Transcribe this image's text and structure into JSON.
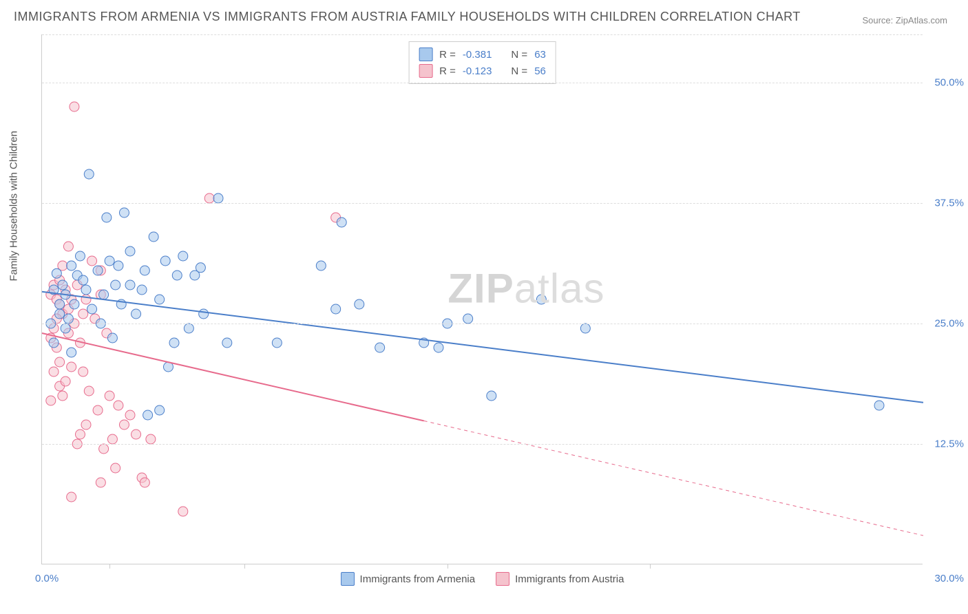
{
  "title": "IMMIGRANTS FROM ARMENIA VS IMMIGRANTS FROM AUSTRIA FAMILY HOUSEHOLDS WITH CHILDREN CORRELATION CHART",
  "source": "Source: ZipAtlas.com",
  "y_axis_label": "Family Households with Children",
  "watermark": {
    "bold": "ZIP",
    "rest": "atlas"
  },
  "chart": {
    "type": "scatter",
    "background_color": "#ffffff",
    "grid_color": "#dddddd",
    "axis_color": "#cccccc",
    "xlim": [
      0,
      30
    ],
    "ylim": [
      0,
      55
    ],
    "x_ticks": [
      0,
      30
    ],
    "x_tick_labels": [
      "0.0%",
      "30.0%"
    ],
    "x_minor_ticks": [
      2.3,
      6.9,
      13.8,
      20.7
    ],
    "y_gridlines": [
      12.5,
      25.0,
      37.5,
      50.0,
      55.0
    ],
    "y_tick_labels": [
      "12.5%",
      "25.0%",
      "37.5%",
      "50.0%"
    ],
    "marker_radius": 7,
    "marker_opacity": 0.55,
    "line_width": 2,
    "label_fontsize": 15,
    "tick_color": "#4a7ec9"
  },
  "series": [
    {
      "name": "Immigrants from Armenia",
      "color_fill": "#a8c9ed",
      "color_stroke": "#4a7ec9",
      "R": "-0.381",
      "N": "63",
      "trend": {
        "x1": 0,
        "y1": 28.3,
        "x2": 30,
        "y2": 16.8,
        "dash_after_x": 999
      },
      "points": [
        [
          0.4,
          28.5
        ],
        [
          0.5,
          30.2
        ],
        [
          0.6,
          27.0
        ],
        [
          0.7,
          29.0
        ],
        [
          0.8,
          28.0
        ],
        [
          0.6,
          26.0
        ],
        [
          1.0,
          31.0
        ],
        [
          1.2,
          30.0
        ],
        [
          1.4,
          29.5
        ],
        [
          1.1,
          27.0
        ],
        [
          0.9,
          25.5
        ],
        [
          1.5,
          28.5
        ],
        [
          1.6,
          40.5
        ],
        [
          2.2,
          36.0
        ],
        [
          2.8,
          36.5
        ],
        [
          1.3,
          32.0
        ],
        [
          2.0,
          25.0
        ],
        [
          2.5,
          29.0
        ],
        [
          2.3,
          31.5
        ],
        [
          2.7,
          27.0
        ],
        [
          3.0,
          32.5
        ],
        [
          3.5,
          30.5
        ],
        [
          3.2,
          26.0
        ],
        [
          2.4,
          23.5
        ],
        [
          3.8,
          34.0
        ],
        [
          4.2,
          31.5
        ],
        [
          4.6,
          30.0
        ],
        [
          4.0,
          27.5
        ],
        [
          4.8,
          32.0
        ],
        [
          5.2,
          30.0
        ],
        [
          4.5,
          23.0
        ],
        [
          5.0,
          24.5
        ],
        [
          5.5,
          26.0
        ],
        [
          6.0,
          38.0
        ],
        [
          4.3,
          20.5
        ],
        [
          3.6,
          15.5
        ],
        [
          4.0,
          16.0
        ],
        [
          6.3,
          23.0
        ],
        [
          9.5,
          31.0
        ],
        [
          10.2,
          35.5
        ],
        [
          8.0,
          23.0
        ],
        [
          10.0,
          26.5
        ],
        [
          10.8,
          27.0
        ],
        [
          11.5,
          22.5
        ],
        [
          13.0,
          23.0
        ],
        [
          13.5,
          22.5
        ],
        [
          13.8,
          25.0
        ],
        [
          14.5,
          25.5
        ],
        [
          15.3,
          17.5
        ],
        [
          17.0,
          27.5
        ],
        [
          18.5,
          24.5
        ],
        [
          28.5,
          16.5
        ],
        [
          0.3,
          25.0
        ],
        [
          0.4,
          23.0
        ],
        [
          0.8,
          24.5
        ],
        [
          1.0,
          22.0
        ],
        [
          1.9,
          30.5
        ],
        [
          2.1,
          28.0
        ],
        [
          3.4,
          28.5
        ],
        [
          1.7,
          26.5
        ],
        [
          2.6,
          31.0
        ],
        [
          5.4,
          30.8
        ],
        [
          3.0,
          29.0
        ]
      ]
    },
    {
      "name": "Immigrants from Austria",
      "color_fill": "#f5c3cd",
      "color_stroke": "#e76a8c",
      "R": "-0.123",
      "N": "56",
      "trend": {
        "x1": 0,
        "y1": 24.0,
        "x2": 30,
        "y2": 3.0,
        "dash_after_x": 13
      },
      "points": [
        [
          0.3,
          28.0
        ],
        [
          0.4,
          29.0
        ],
        [
          0.5,
          27.5
        ],
        [
          0.6,
          29.5
        ],
        [
          0.6,
          27.0
        ],
        [
          0.7,
          26.0
        ],
        [
          0.4,
          24.5
        ],
        [
          0.8,
          28.5
        ],
        [
          0.9,
          26.5
        ],
        [
          1.0,
          27.5
        ],
        [
          0.5,
          22.5
        ],
        [
          0.6,
          21.0
        ],
        [
          0.3,
          23.5
        ],
        [
          0.4,
          20.0
        ],
        [
          0.9,
          33.0
        ],
        [
          0.7,
          31.0
        ],
        [
          1.2,
          29.0
        ],
        [
          1.1,
          25.0
        ],
        [
          1.3,
          23.0
        ],
        [
          0.6,
          18.5
        ],
        [
          0.7,
          17.5
        ],
        [
          0.3,
          17.0
        ],
        [
          1.0,
          20.5
        ],
        [
          0.8,
          19.0
        ],
        [
          1.7,
          31.5
        ],
        [
          1.5,
          27.5
        ],
        [
          1.8,
          25.5
        ],
        [
          2.0,
          30.5
        ],
        [
          2.0,
          28.0
        ],
        [
          2.2,
          24.0
        ],
        [
          1.6,
          18.0
        ],
        [
          1.4,
          20.0
        ],
        [
          1.1,
          47.5
        ],
        [
          1.9,
          16.0
        ],
        [
          2.3,
          17.5
        ],
        [
          2.6,
          16.5
        ],
        [
          2.4,
          13.0
        ],
        [
          2.8,
          14.5
        ],
        [
          2.1,
          12.0
        ],
        [
          2.5,
          10.0
        ],
        [
          2.0,
          8.5
        ],
        [
          3.0,
          15.5
        ],
        [
          3.2,
          13.5
        ],
        [
          3.4,
          9.0
        ],
        [
          3.5,
          8.5
        ],
        [
          1.3,
          13.5
        ],
        [
          1.5,
          14.5
        ],
        [
          1.2,
          12.5
        ],
        [
          1.0,
          7.0
        ],
        [
          3.7,
          13.0
        ],
        [
          5.7,
          38.0
        ],
        [
          4.8,
          5.5
        ],
        [
          10.0,
          36.0
        ],
        [
          0.5,
          25.5
        ],
        [
          0.9,
          24.0
        ],
        [
          1.4,
          26.0
        ]
      ]
    }
  ],
  "legend_top_labels": {
    "R": "R =",
    "N": "N ="
  },
  "legend_bottom": [
    "Immigrants from Armenia",
    "Immigrants from Austria"
  ]
}
